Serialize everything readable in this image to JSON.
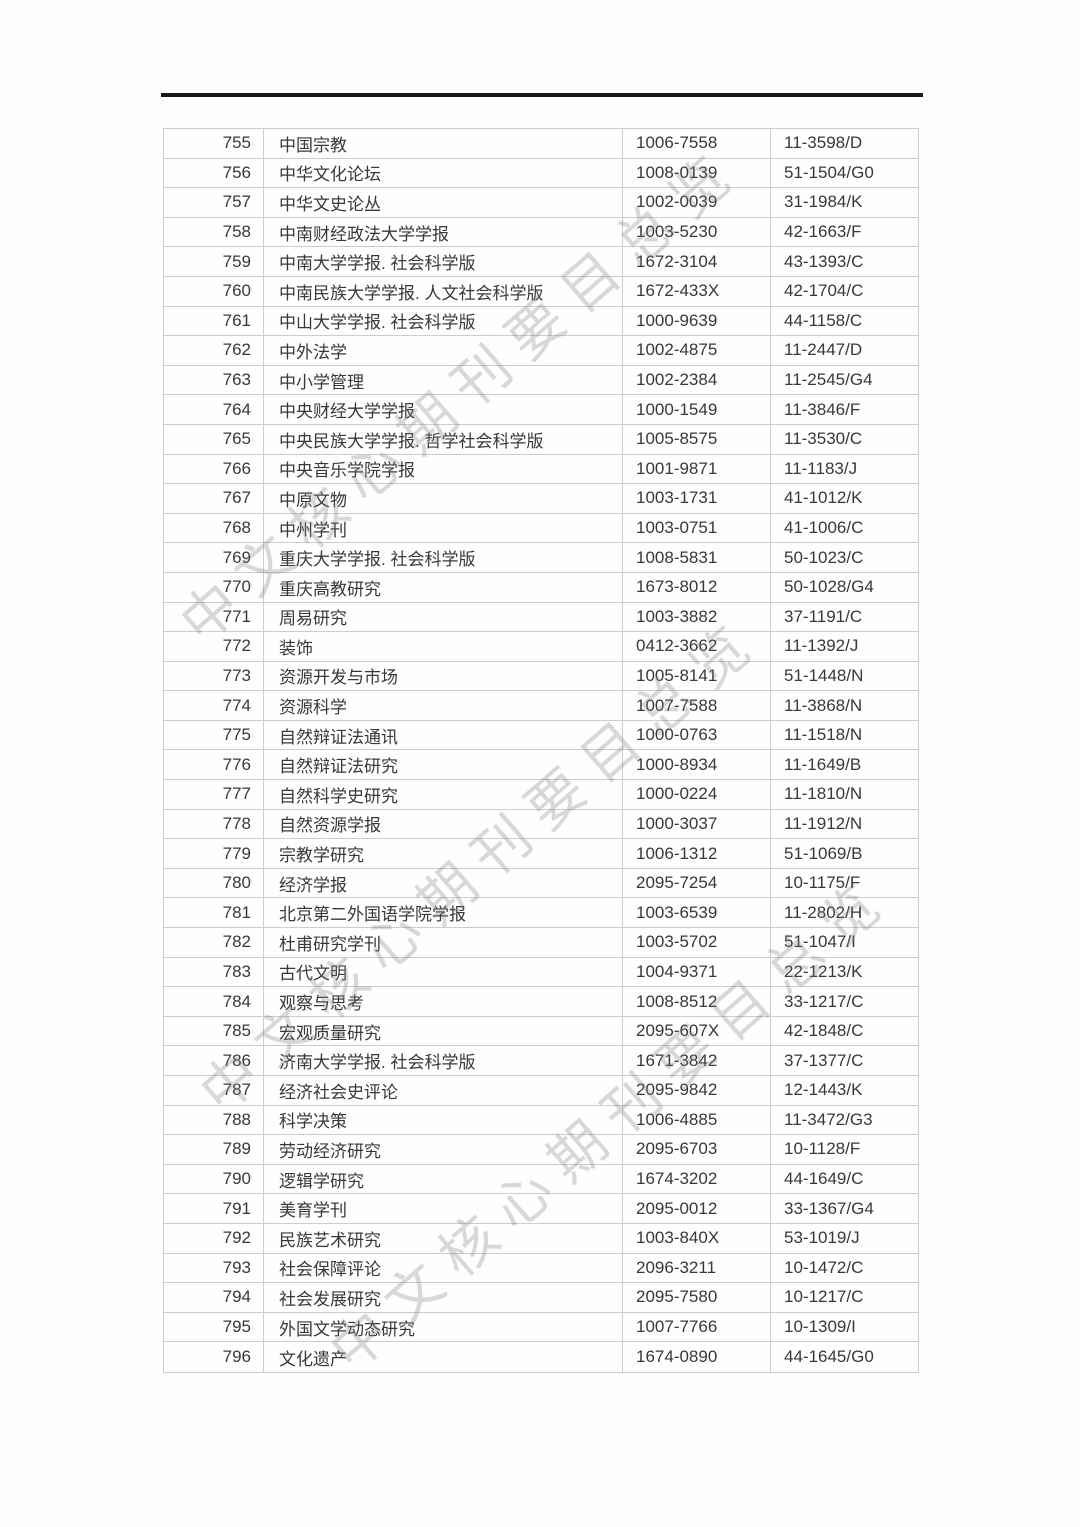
{
  "page": {
    "watermark_text": "中文核心期刊要目总览",
    "colors": {
      "text": "#383838",
      "grid_line": "#cccccc",
      "header_rule": "#1a1a1a",
      "watermark": "#d6d6d6",
      "background": "#fefefe"
    }
  },
  "table": {
    "rows": [
      {
        "no": "755",
        "title": "中国宗教",
        "issn": "1006-7558",
        "cn": "11-3598/D"
      },
      {
        "no": "756",
        "title": "中华文化论坛",
        "issn": "1008-0139",
        "cn": "51-1504/G0"
      },
      {
        "no": "757",
        "title": "中华文史论丛",
        "issn": "1002-0039",
        "cn": "31-1984/K"
      },
      {
        "no": "758",
        "title": "中南财经政法大学学报",
        "issn": "1003-5230",
        "cn": "42-1663/F"
      },
      {
        "no": "759",
        "title": "中南大学学报. 社会科学版",
        "issn": "1672-3104",
        "cn": "43-1393/C"
      },
      {
        "no": "760",
        "title": "中南民族大学学报. 人文社会科学版",
        "issn": "1672-433X",
        "cn": "42-1704/C"
      },
      {
        "no": "761",
        "title": "中山大学学报. 社会科学版",
        "issn": "1000-9639",
        "cn": "44-1158/C"
      },
      {
        "no": "762",
        "title": "中外法学",
        "issn": "1002-4875",
        "cn": "11-2447/D"
      },
      {
        "no": "763",
        "title": "中小学管理",
        "issn": "1002-2384",
        "cn": "11-2545/G4"
      },
      {
        "no": "764",
        "title": "中央财经大学学报",
        "issn": "1000-1549",
        "cn": "11-3846/F"
      },
      {
        "no": "765",
        "title": "中央民族大学学报. 哲学社会科学版",
        "issn": "1005-8575",
        "cn": "11-3530/C"
      },
      {
        "no": "766",
        "title": "中央音乐学院学报",
        "issn": "1001-9871",
        "cn": "11-1183/J"
      },
      {
        "no": "767",
        "title": "中原文物",
        "issn": "1003-1731",
        "cn": "41-1012/K"
      },
      {
        "no": "768",
        "title": "中州学刊",
        "issn": "1003-0751",
        "cn": "41-1006/C"
      },
      {
        "no": "769",
        "title": "重庆大学学报. 社会科学版",
        "issn": "1008-5831",
        "cn": "50-1023/C"
      },
      {
        "no": "770",
        "title": "重庆高教研究",
        "issn": "1673-8012",
        "cn": "50-1028/G4"
      },
      {
        "no": "771",
        "title": "周易研究",
        "issn": "1003-3882",
        "cn": "37-1191/C"
      },
      {
        "no": "772",
        "title": "装饰",
        "issn": "0412-3662",
        "cn": "11-1392/J"
      },
      {
        "no": "773",
        "title": "资源开发与市场",
        "issn": "1005-8141",
        "cn": "51-1448/N"
      },
      {
        "no": "774",
        "title": "资源科学",
        "issn": "1007-7588",
        "cn": "11-3868/N"
      },
      {
        "no": "775",
        "title": "自然辩证法通讯",
        "issn": "1000-0763",
        "cn": "11-1518/N"
      },
      {
        "no": "776",
        "title": "自然辩证法研究",
        "issn": "1000-8934",
        "cn": "11-1649/B"
      },
      {
        "no": "777",
        "title": "自然科学史研究",
        "issn": "1000-0224",
        "cn": "11-1810/N"
      },
      {
        "no": "778",
        "title": "自然资源学报",
        "issn": "1000-3037",
        "cn": "11-1912/N"
      },
      {
        "no": "779",
        "title": "宗教学研究",
        "issn": "1006-1312",
        "cn": "51-1069/B"
      },
      {
        "no": "780",
        "title": "经济学报",
        "issn": "2095-7254",
        "cn": "10-1175/F"
      },
      {
        "no": "781",
        "title": "北京第二外国语学院学报",
        "issn": "1003-6539",
        "cn": "11-2802/H"
      },
      {
        "no": "782",
        "title": "杜甫研究学刊",
        "issn": "1003-5702",
        "cn": "51-1047/I"
      },
      {
        "no": "783",
        "title": "古代文明",
        "issn": "1004-9371",
        "cn": "22-1213/K"
      },
      {
        "no": "784",
        "title": "观察与思考",
        "issn": "1008-8512",
        "cn": "33-1217/C"
      },
      {
        "no": "785",
        "title": "宏观质量研究",
        "issn": "2095-607X",
        "cn": "42-1848/C"
      },
      {
        "no": "786",
        "title": "济南大学学报. 社会科学版",
        "issn": "1671-3842",
        "cn": "37-1377/C"
      },
      {
        "no": "787",
        "title": "经济社会史评论",
        "issn": "2095-9842",
        "cn": "12-1443/K"
      },
      {
        "no": "788",
        "title": "科学决策",
        "issn": "1006-4885",
        "cn": "11-3472/G3"
      },
      {
        "no": "789",
        "title": "劳动经济研究",
        "issn": "2095-6703",
        "cn": "10-1128/F"
      },
      {
        "no": "790",
        "title": "逻辑学研究",
        "issn": "1674-3202",
        "cn": "44-1649/C"
      },
      {
        "no": "791",
        "title": "美育学刊",
        "issn": "2095-0012",
        "cn": "33-1367/G4"
      },
      {
        "no": "792",
        "title": "民族艺术研究",
        "issn": "1003-840X",
        "cn": "53-1019/J"
      },
      {
        "no": "793",
        "title": "社会保障评论",
        "issn": "2096-3211",
        "cn": "10-1472/C"
      },
      {
        "no": "794",
        "title": "社会发展研究",
        "issn": "2095-7580",
        "cn": "10-1217/C"
      },
      {
        "no": "795",
        "title": "外国文学动态研究",
        "issn": "1007-7766",
        "cn": "10-1309/I"
      },
      {
        "no": "796",
        "title": "文化遗产",
        "issn": "1674-0890",
        "cn": "44-1645/G0"
      }
    ]
  }
}
